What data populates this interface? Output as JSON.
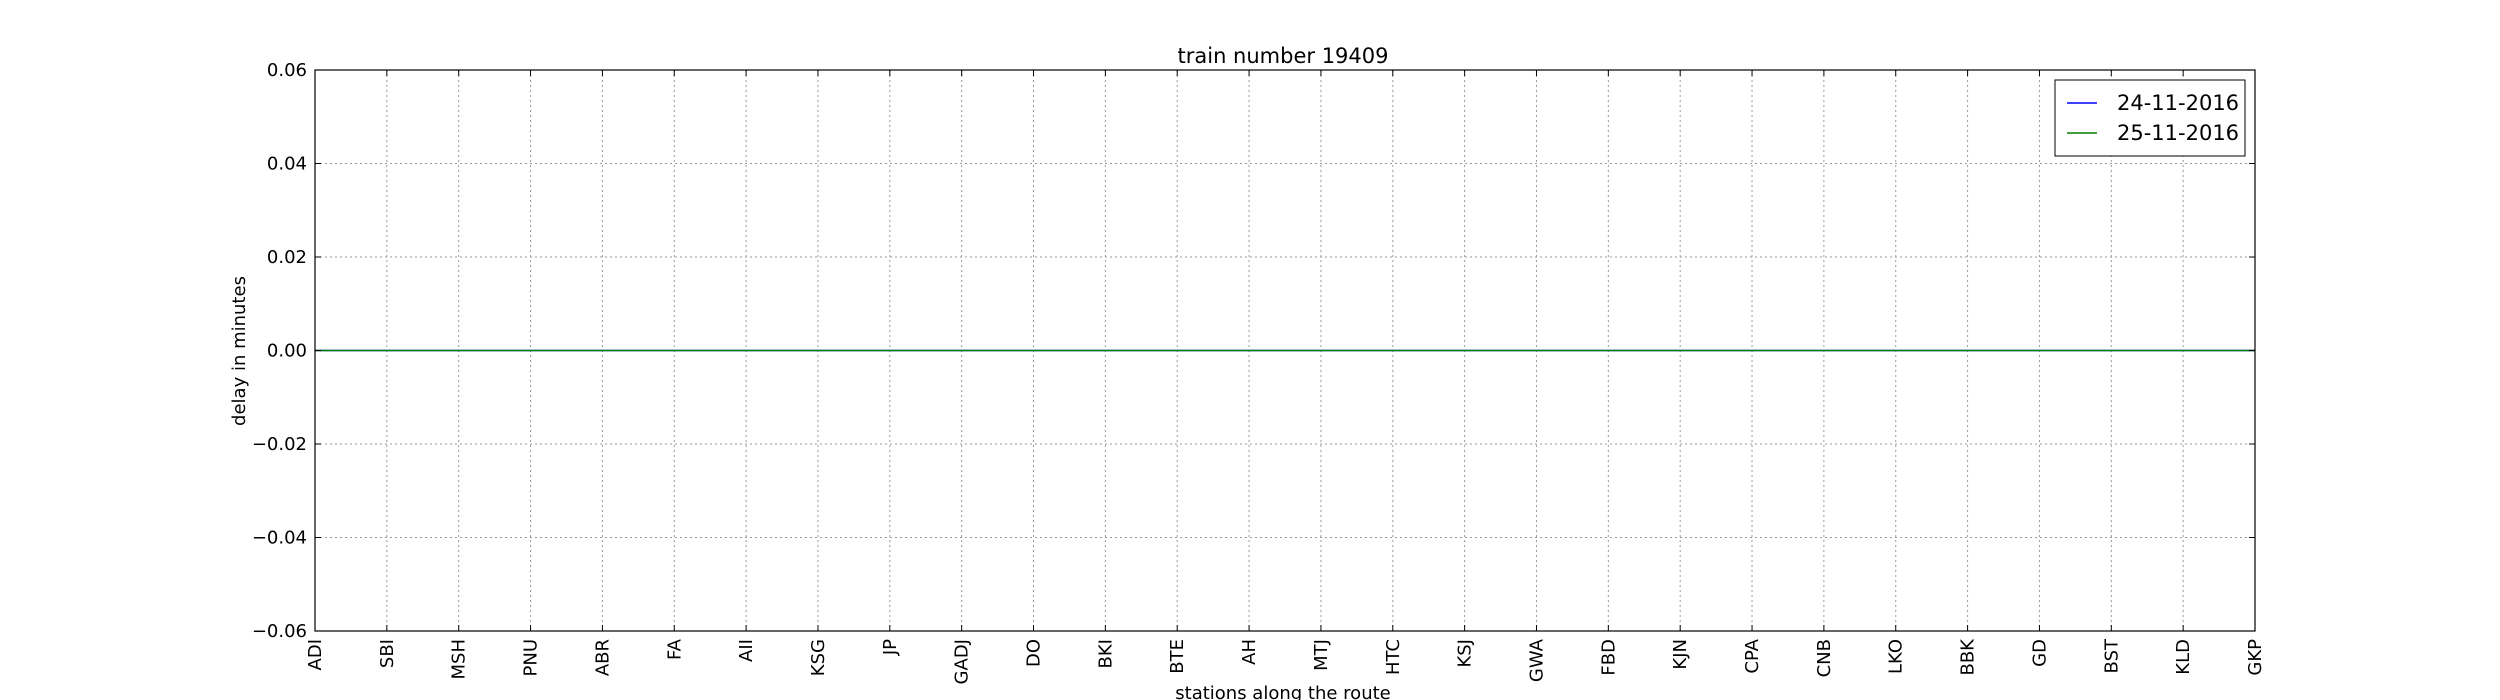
{
  "chart_data": {
    "type": "line",
    "title": "train number 19409",
    "xlabel": "stations along the route",
    "ylabel": "delay in minutes",
    "categories": [
      "ADI",
      "SBI",
      "MSH",
      "PNU",
      "ABR",
      "FA",
      "AII",
      "KSG",
      "JP",
      "GADJ",
      "DO",
      "BKI",
      "BTE",
      "AH",
      "MTJ",
      "HTC",
      "KSJ",
      "GWA",
      "FBD",
      "KJN",
      "CPA",
      "CNB",
      "LKO",
      "BBK",
      "GD",
      "BST",
      "KLD",
      "GKP"
    ],
    "ylim": [
      -0.06,
      0.06
    ],
    "yticks": [
      "0.06",
      "0.04",
      "0.02",
      "0.00",
      "−0.02",
      "−0.04",
      "−0.06"
    ],
    "grid": true,
    "legend_position": "top-right",
    "series": [
      {
        "name": "24-11-2016",
        "color": "#0000ff",
        "values": [
          0,
          0,
          0,
          0,
          0,
          0,
          0,
          0,
          0,
          0,
          0,
          0,
          0,
          0,
          0,
          0,
          0,
          0,
          0,
          0,
          0,
          0,
          0,
          0,
          0,
          0,
          0,
          0
        ]
      },
      {
        "name": "25-11-2016",
        "color": "#008000",
        "values": [
          0,
          0,
          0,
          0,
          0,
          0,
          0,
          0,
          0,
          0,
          0,
          0,
          0,
          0,
          0,
          0,
          0,
          0,
          0,
          0,
          0,
          0,
          0,
          0,
          0,
          0,
          0,
          0
        ]
      }
    ]
  }
}
